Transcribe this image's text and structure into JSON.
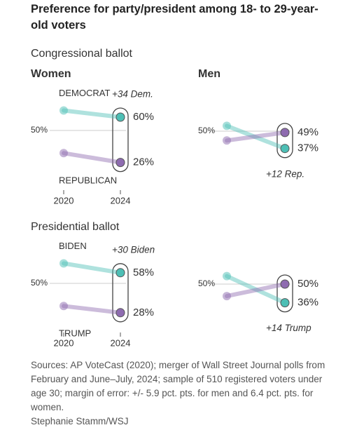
{
  "title": "Preference for party/president among 18- to 29-year-old voters",
  "sections": [
    "Congressional ballot",
    "Presidential ballot"
  ],
  "sources": "Sources: AP VoteCast (2020); merger of Wall Street Journal polls from February and June–July, 2024; sample of 510 registered voters under age 30; margin of error: +/- 5.9 pct. pts. for men and 6.4 pct. pts. for women.",
  "credit": "Stephanie Stamm/WSJ",
  "chart_data": [
    {
      "type": "slope",
      "panel": "Women",
      "categories": [
        "2020",
        "2024"
      ],
      "ylim": [
        20,
        70
      ],
      "yticks": [
        {
          "value": 50,
          "label": "50%"
        }
      ],
      "annotation": "+34 Dem.",
      "series": [
        {
          "name": "DEMOCRAT",
          "color": "#4dbfb5",
          "values": [
            65,
            60
          ],
          "value_labels": [
            null,
            "60%"
          ]
        },
        {
          "name": "REPUBLICAN",
          "color": "#8e6bb0",
          "values": [
            33,
            26
          ],
          "value_labels": [
            null,
            "26%"
          ]
        }
      ]
    },
    {
      "type": "slope",
      "panel": "Men",
      "categories": [
        null,
        null
      ],
      "ylim": [
        20,
        70
      ],
      "yticks": [
        {
          "value": 50,
          "label": "50%"
        }
      ],
      "annotation": "+12 Rep.",
      "series": [
        {
          "color": "#4dbfb5",
          "values": [
            54,
            37
          ],
          "value_labels": [
            null,
            "37%"
          ]
        },
        {
          "color": "#8e6bb0",
          "values": [
            43,
            49
          ],
          "value_labels": [
            null,
            "49%"
          ]
        }
      ]
    },
    {
      "type": "slope",
      "categories": [
        "2020",
        "2024"
      ],
      "ylim": [
        20,
        70
      ],
      "yticks": [
        {
          "value": 50,
          "label": "50%"
        }
      ],
      "annotation": "+30 Biden",
      "series": [
        {
          "name": "BIDEN",
          "color": "#4dbfb5",
          "values": [
            65,
            58
          ],
          "value_labels": [
            null,
            "58%"
          ]
        },
        {
          "name": "TRUMP",
          "color": "#8e6bb0",
          "values": [
            33,
            28
          ],
          "value_labels": [
            null,
            "28%"
          ]
        }
      ]
    },
    {
      "type": "slope",
      "categories": [
        null,
        null
      ],
      "ylim": [
        20,
        70
      ],
      "yticks": [
        {
          "value": 50,
          "label": "50%"
        }
      ],
      "annotation": "+14 Trump",
      "series": [
        {
          "color": "#4dbfb5",
          "values": [
            56,
            36
          ],
          "value_labels": [
            null,
            "36%"
          ]
        },
        {
          "color": "#8e6bb0",
          "values": [
            41,
            50
          ],
          "value_labels": [
            null,
            "50%"
          ]
        }
      ]
    }
  ]
}
